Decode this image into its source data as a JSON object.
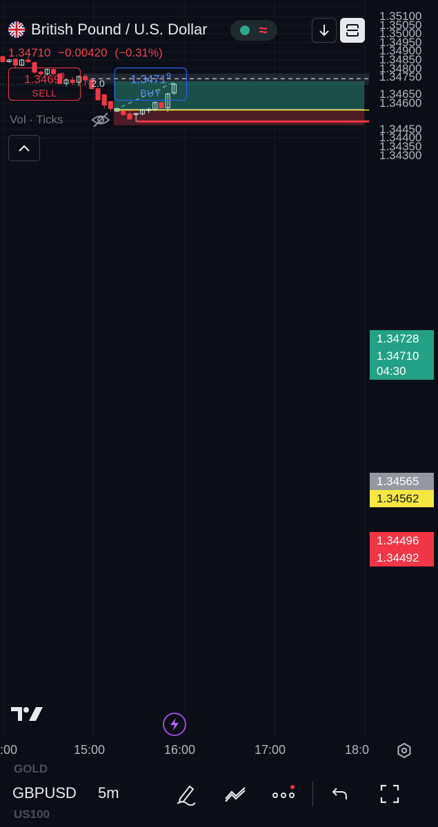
{
  "header": {
    "instrument_title": "British Pound / U.S. Dollar",
    "last_price": "1.34710",
    "change": "−0.00420",
    "change_pct": "(−0.31%)",
    "sell": {
      "price_main": "1.3469",
      "price_sup": "9",
      "label": "SELL"
    },
    "buy": {
      "price_main": "1.3471",
      "price_sup": "9",
      "label": "BUY"
    },
    "spread": "2.0",
    "volume_label": "Vol · Ticks"
  },
  "price_axis": {
    "labels": [
      "1.35100",
      "1.35050",
      "1.35000",
      "1.34950",
      "1.34900",
      "1.34850",
      "1.34800",
      "1.34750",
      "1.34650",
      "1.34600",
      "1.34450",
      "1.34400",
      "1.34350",
      "1.34300"
    ]
  },
  "price_badges": {
    "target": "1.34728",
    "current_price": "1.34710",
    "countdown": "04:30",
    "entry": "1.34565",
    "horizontal_line": "1.34562",
    "stop": "1.34496",
    "bid_low": "1.34492"
  },
  "time_axis": {
    "labels": [
      ":00",
      "15:00",
      "16:00",
      "17:00",
      "18:0"
    ]
  },
  "bottom_bar": {
    "symbol": "GBPUSD",
    "interval": "5m",
    "ghost_above": "GOLD",
    "ghost_below": "US100"
  },
  "colors": {
    "background": "#0b0e16",
    "bullish": "#ffffff",
    "bearish": "#f23645",
    "profit_zone": "#1f5a52",
    "loss_zone": "#5a1f2a",
    "accent_blue": "#2962ff",
    "yellow_line": "#f5e642"
  },
  "chart_data": {
    "type": "candlestick",
    "instrument": "GBPUSD",
    "interval": "5m",
    "x_ticks": [
      ":00",
      "15:00",
      "16:00",
      "17:00",
      "18:0"
    ],
    "y_range": [
      1.34275,
      1.35115
    ],
    "candles": [
      {
        "o": 1.3487,
        "h": 1.34875,
        "c": 1.3484,
        "l": 1.34835
      },
      {
        "o": 1.3484,
        "h": 1.34855,
        "c": 1.3485,
        "l": 1.34835
      },
      {
        "o": 1.34855,
        "h": 1.3486,
        "c": 1.3482,
        "l": 1.348
      },
      {
        "o": 1.3482,
        "h": 1.34855,
        "c": 1.3485,
        "l": 1.34815
      },
      {
        "o": 1.3485,
        "h": 1.3487,
        "c": 1.3484,
        "l": 1.34835
      },
      {
        "o": 1.34835,
        "h": 1.3484,
        "c": 1.3478,
        "l": 1.3477
      },
      {
        "o": 1.3478,
        "h": 1.3479,
        "c": 1.3477,
        "l": 1.34755
      },
      {
        "o": 1.3477,
        "h": 1.348,
        "c": 1.34795,
        "l": 1.3476
      },
      {
        "o": 1.34795,
        "h": 1.348,
        "c": 1.3477,
        "l": 1.3476
      },
      {
        "o": 1.3477,
        "h": 1.34775,
        "c": 1.34715,
        "l": 1.3471
      },
      {
        "o": 1.34715,
        "h": 1.34745,
        "c": 1.34735,
        "l": 1.347
      },
      {
        "o": 1.34735,
        "h": 1.3475,
        "c": 1.3472,
        "l": 1.34705
      },
      {
        "o": 1.34722,
        "h": 1.3476,
        "c": 1.34755,
        "l": 1.347
      },
      {
        "o": 1.34755,
        "h": 1.3477,
        "c": 1.34735,
        "l": 1.347
      },
      {
        "o": 1.34735,
        "h": 1.3474,
        "c": 1.34685,
        "l": 1.3468
      },
      {
        "o": 1.34685,
        "h": 1.3469,
        "c": 1.3462,
        "l": 1.34615
      },
      {
        "o": 1.3465,
        "h": 1.34655,
        "c": 1.3459,
        "l": 1.3457
      },
      {
        "o": 1.3461,
        "h": 1.34615,
        "c": 1.3457,
        "l": 1.34555
      },
      {
        "o": 1.34555,
        "h": 1.34575,
        "c": 1.3457,
        "l": 1.3455
      },
      {
        "o": 1.34555,
        "h": 1.3456,
        "c": 1.34535,
        "l": 1.3453
      },
      {
        "o": 1.3454,
        "h": 1.3456,
        "c": 1.3451,
        "l": 1.34505
      },
      {
        "o": 1.34535,
        "h": 1.34545,
        "c": 1.34542,
        "l": 1.34495
      },
      {
        "o": 1.3454,
        "h": 1.3457,
        "c": 1.3456,
        "l": 1.3453
      },
      {
        "o": 1.3456,
        "h": 1.34575,
        "c": 1.34565,
        "l": 1.34545
      },
      {
        "o": 1.34565,
        "h": 1.3461,
        "c": 1.34605,
        "l": 1.34555
      },
      {
        "o": 1.34605,
        "h": 1.3461,
        "c": 1.34575,
        "l": 1.3457
      },
      {
        "o": 1.34575,
        "h": 1.3466,
        "c": 1.34655,
        "l": 1.3455
      },
      {
        "o": 1.3466,
        "h": 1.3472,
        "c": 1.3471,
        "l": 1.3465
      }
    ],
    "position_tool": {
      "entry": 1.34565,
      "target": 1.34728,
      "stop": 1.34496
    },
    "horizontal_line": 1.34562,
    "stop_line": 1.34496
  }
}
